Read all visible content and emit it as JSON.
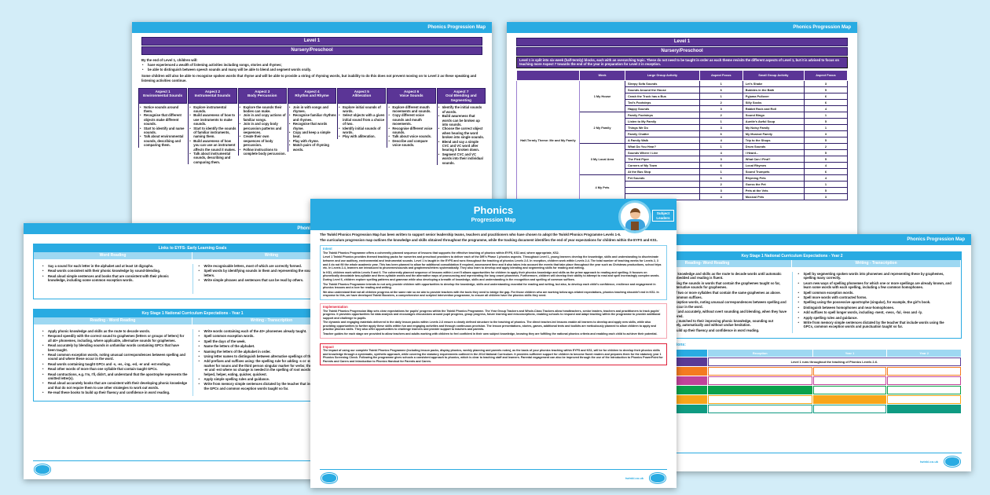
{
  "header_label": "Phonics Progression Map",
  "level1": {
    "title": "Level 1",
    "subtitle": "Nursery/Preschool",
    "intro": "By the end of Level 1, children will:",
    "intro_points": [
      "have experienced a wealth of listening activities including songs, stories and rhymes;",
      "be able to distinguish between speech sounds and many will be able to blend and segment words orally."
    ],
    "note": "Some children will also be able to recognise spoken words that rhyme and will be able to provide a string of rhyming words, but inability to do this does not prevent moving on to Level 2 as these speaking and listening activities continue.",
    "aspects": [
      {
        "title": "Aspect 1",
        "name": "Environmental Sounds",
        "points": [
          "Notice sounds around them.",
          "Recognise that different objects make different sounds.",
          "Start to identify and name sounds.",
          "Talk about environmental sounds, describing and comparing them."
        ]
      },
      {
        "title": "Aspect 2",
        "name": "Instrumental Sounds",
        "points": [
          "Explore instrumental sounds.",
          "Build awareness of how to use instruments to make sounds.",
          "Start to identify the sounds of familiar instruments, naming them.",
          "Build awareness of how you can use an instrument affects the sound it makes.",
          "Talk about instrumental sounds, describing and comparing them."
        ]
      },
      {
        "title": "Aspect 3",
        "name": "Body Percussion",
        "points": [
          "Explore the sounds their bodies can make.",
          "Join in and copy actions of familiar songs.",
          "Join in and copy body percussion patterns and sequences.",
          "Create their own sequences of body percussion.",
          "Follow instructions to complete body percussion."
        ]
      },
      {
        "title": "Aspect 4",
        "name": "Rhythm and Rhyme",
        "points": [
          "Join in with songs and rhymes.",
          "Recognise familiar rhythms and rhymes.",
          "Recognise that words rhyme.",
          "Copy and keep a simple beat.",
          "Play with rhyme.",
          "Match pairs of rhyming words."
        ]
      },
      {
        "title": "Aspect 5",
        "name": "Alliteration",
        "points": [
          "Explore initial sounds of words.",
          "Select objects with a given initial sound from a choice of two.",
          "Identify initial sounds of words.",
          "Play with alliteration."
        ]
      },
      {
        "title": "Aspect 6",
        "name": "Voice Sounds",
        "points": [
          "Explore different mouth movements and sounds.",
          "Copy different voice sounds and mouth movements.",
          "Recognise different voice sounds.",
          "Talk about voice sounds.",
          "Describe and compare voice sounds."
        ]
      },
      {
        "title": "Aspect 7",
        "name": "Oral Blending and Segmenting",
        "points": [
          "Identify the initial sounds of words.",
          "Build awareness that words can be broken up into sounds.",
          "Choose the correct object when hearing the word broken into single sounds.",
          "Blend and say a simple CVC and VC word after hearing it broken down.",
          "Segment CVC and VC words into their individual sounds."
        ]
      }
    ]
  },
  "level1_plan": {
    "title": "Level 1",
    "subtitle": "Nursery/Preschool",
    "note": "Level 1 is split into six-week (half-termly) blocks, each with an overarching topic. These do not need to be taught in order as each theme revisits the different aspects of Level 1, but it is advised to focus on teaching more Aspect 7 towards the end of the year in preparation for Level 2 in reception.",
    "columns": [
      "",
      "Week",
      "Large Group Activity",
      "Aspect Focus",
      "Small Group Activity",
      "Aspect Focus"
    ],
    "theme": "Half-Termly Theme: Me and My Family",
    "weeks": [
      {
        "label": "1 My House",
        "rows": [
          [
            "Sleepy Sofa Sounds",
            "1",
            "Let's Shake",
            "3"
          ],
          [
            "Sounds Around the House",
            "6",
            "Bubbles in the Bath",
            "5"
          ],
          [
            "Crash the Truck has a Bus",
            "1",
            "Pyjama Pullover",
            "6"
          ],
          [
            "Ted's Footsteps",
            "2",
            "Silly Socks",
            "6"
          ],
          [
            "Happy Sounds",
            "3",
            "Rabbit Rock and Roll",
            "4"
          ]
        ]
      },
      {
        "label": "2 My Family",
        "rows": [
          [
            "Family Footsteps",
            "2",
            "Sound Bingo",
            "1"
          ],
          [
            "Listen to My Family",
            "1",
            "Auntie's Awful Soup",
            "5"
          ],
          [
            "Things We Do",
            "3",
            "My Noisy Family",
            "1"
          ],
          [
            "Family Chatter",
            "6",
            "My Musical Family",
            "3"
          ],
          [
            "A Family Walk",
            "4",
            "Trip to the Shops",
            "5"
          ]
        ]
      },
      {
        "label": "3 My Local Area",
        "rows": [
          [
            "What Do You Hear?",
            "1",
            "Drum Sounds",
            "2"
          ],
          [
            "Sounds Where I Live",
            "4",
            "I Heard...",
            "5"
          ],
          [
            "The Pied Piper",
            "3",
            "What Can I Find?",
            "5"
          ],
          [
            "Corners of My Town",
            "6",
            "Local Rhymes",
            "4"
          ],
          [
            "At the Bus Stop",
            "1",
            "Sound Trumpets",
            "6"
          ]
        ]
      },
      {
        "label": "4 My Pets",
        "rows": [
          [
            "Pet Sounds",
            "6",
            "Rhyming Pets",
            "4"
          ],
          [
            "",
            "2",
            "Guess the Pet",
            "1"
          ],
          [
            "",
            "3",
            "Pets at the Vets",
            "5"
          ],
          [
            "",
            "4",
            "Musical Pets",
            "3"
          ]
        ]
      }
    ]
  },
  "eyfs": {
    "title": "Links to EYFS- Early Learning Goals",
    "reading_label": "Word Reading",
    "writing_label": "Writing",
    "reading": [
      "Say a sound for each letter in the alphabet and at least 10 digraphs.",
      "Read words consistent with their phonic knowledge by sound-blending.",
      "Read aloud simple sentences and books that are consistent with their phonic knowledge, including some common exception words."
    ],
    "writing": [
      "Write recognisable letters, most of which are correctly formed.",
      "Spell words by identifying sounds in them and representing the sounds with a letter or letters.",
      "Write simple phrases and sentences that can be read by others."
    ]
  },
  "year1": {
    "title": "Key Stage 1 National Curriculum Expectations - Year 1",
    "reading_label": "Reading - Word Reading",
    "writing_label": "Writing - Transcription",
    "reading": [
      "Apply phonic knowledge and skills as the route to decode words.",
      "Respond speedily with the correct sound to graphemes (letters or groups of letters) for all 40+ phonemes, including, where applicable, alternative sounds for graphemes.",
      "Read accurately by blending sounds in unfamiliar words containing GPCs that have been taught.",
      "Read common exception words, noting unusual correspondences between spelling and sound and where these occur in the word.",
      "Read words containing taught GPCs and -s, -es, -ing, -ed, -er and -est endings.",
      "Read other words of more than one syllable that contain taught GPCs.",
      "Read contractions, e.g. I'm, I'll, didn't, and understand that the apostrophe represents the omitted letter(s).",
      "Read aloud accurately books that are consistent with their developing phonic knowledge and that do not require them to use other strategies to work out words.",
      "Re-read these books to build up their fluency and confidence in word reading."
    ],
    "writing": [
      "Write words containing each of the 40+ phonemes already taught.",
      "Spell common exception words.",
      "Spell the days of the week.",
      "Name the letters of the alphabet.",
      "Naming the letters of the alphabet in order.",
      "Using letter names to distinguish between alternative spellings of the same sound.",
      "Add prefixes and suffixes using: the spelling rule for adding -s or -es as the plural marker for nouns and the third person singular marker for verbs; the prefix un-; -ing, -ed, -er and -est where no change is needed in the spelling of root words, e.g. helping, helped, helper, eating, quicker, quickest.",
      "Apply simple spelling rules and guidance.",
      "Write from memory simple sentences dictated by the teacher that include words using the GPCs and common exception words taught so far."
    ]
  },
  "year2": {
    "title": "Key Stage 1 National Curriculum Expectations - Year 2",
    "reading_label": "Reading- Word Reading",
    "writing_label": "Writing - Transcription",
    "reading": [
      "Continue to apply phonic knowledge and skills as the route to decode words until automatic decoding has become embedded and reading is fluent.",
      "Read accurately by blending the sounds in words that contain the graphemes taught so far, especially recognising alternative sounds for graphemes.",
      "Read accurately words of two or more syllables that contain the same graphemes as above.",
      "Read words containing common suffixes.",
      "Read further common exception words, noting unusual correspondences between spelling and sound and where these occur in the word.",
      "Read most words quickly and accurately, without overt sounding and blending, when they have been frequently encountered.",
      "Read aloud books closely matched to their improving phonic knowledge, sounding out unfamiliar words accurately, automatically and without undue hesitation.",
      "Re-read these books to build up their fluency and confidence in word reading."
    ],
    "writing": [
      "Spell by segmenting spoken words into phonemes and representing these by graphemes, spelling many correctly.",
      "Learn new ways of spelling phonemes for which one or more spellings are already known, and learn some words with each spelling, including a few common homophones.",
      "Spell common exception words.",
      "Spell more words with contracted forms.",
      "Spelling using the possessive apostrophe (singular), for example, the girl's book.",
      "Distinguish between homophones and near-homophones.",
      "Add suffixes to spell longer words, including -ment, -ness, -ful, -less and -ly.",
      "Apply spelling rules and guidance.",
      "Write from memory simple sentences dictated by the teacher that include words using the GPCs, common exception words and punctuation taught so far."
    ],
    "levels_caption": "Phonics Levels and Expectations:",
    "levels_columns": [
      "Phonics Level",
      "Reception",
      "Year 1",
      "Year 2"
    ],
    "level1_note": "Level 1 runs throughout the teaching of Phonics Levels 2-6.",
    "levels": [
      {
        "label": "1",
        "color": "#5b3a96",
        "fill": []
      },
      {
        "label": "2",
        "color": "#f47b20",
        "fill": []
      },
      {
        "label": "3",
        "color": "#c1449a",
        "fill": []
      },
      {
        "label": "4",
        "color": "#0aa14b",
        "fill": [
          "Reception"
        ]
      },
      {
        "label": "5",
        "color": "#f9a51a",
        "fill": [
          "Year 1"
        ]
      },
      {
        "label": "6",
        "color": "#0f9b82",
        "fill": [
          "Year 2"
        ]
      }
    ]
  },
  "cover": {
    "title": "Phonics",
    "subtitle": "Progression Map",
    "badge": "Subject Leaders",
    "intro1": "The Twinkl Phonics Progression Map has been written to support senior leadership teams, teachers and practitioners who have chosen to adopt the Twinkl Phonics Programme Levels 1-6.",
    "intro2": "The curriculum progression map outlines the knowledge and skills obtained throughout the programme, while the tracking document identifies the end of year expectations for children within the EYFS and KS1.",
    "intent_label": "Intent",
    "intent": [
      "The Twinkl Phonics Programme offers a coherently planned sequence of lessons that supports the effective teaching of phonics within EYFS, KS1 and, where appropriate, KS2.",
      "Level 1 Twinkl Phonics provides themed teaching packs for nurseries and preschool providers to deliver each of the DfE's Phase 1 phonics aspects. Throughout Level 1, young learners develop the knowledge, skills and understanding to discriminate between and use auditory, environmental and instrumental sounds. Level 1 is taught in the EYFS and runs throughout the teaching of phonics Levels 2-6. In reception, children work within Levels 2-4. The total number of teaching weeks for Levels 2, 3 and 4 do not fill the whole academic year. This has been planned to allow for additional consolidation if required, assessment time and it also takes into account the events that take place throughout the year such as Christmas productions, school trips etc. In Levels 2-4, learners are introduced to phonemes/sounds and graphemes/letters systematically. They also learn to develop and apply blending and segmenting skills for reading and writing.",
      "In KS1, children work within Levels 5 and 6. The coherently planned sequence of lessons within Level 5 allows opportunities for children to apply their phonics knowledge and skills as the prime approach to reading and spelling. It focuses on phonetically decodable two-syllable and three-syllable words and the alternative ways of pronouncing and representing the long vowel phonemes. Furthermore, children will develop their ability to attempt to read and spell increasingly complex words. During Level 6, children explore spelling patterns and grammar while also developing a breadth of knowledge, skills and understanding in the recognition and spelling of common suffixes.",
      "The Twinkl Phonics Programme intends to not only provide children with opportunities to develop the knowledge, skills and understanding essential for reading and writing, but also, to develop each child's confidence, resilience and engagement in phonics lessons and a love for reading and writing.",
      "We also understand that not all children progress at the same rate so we aim to provide teachers with the tools they need to bridge the gap. For those children who are working below age-related expectations, phonics teaching shouldn't end in KS1. In response to this, we have developed Twinkl Boosters, a comprehensive and scripted intervention programme, to ensure all children have the phonics skills they need."
    ],
    "implementation_label": "Implementation",
    "implementation": [
      "The Twinkl Phonics Progression Map sets clear expectations for pupils' progress within the Twinkl Phonics Programme. The Year Group Trackers and Whole-Class Trackers allow headteachers, senior leaders, teachers and practitioners to track pupils' progress. It provides opportunities for data analysis and encourages discussions around pupil progress, group progress, future learning and misconceptions, enabling schools to respond and adapt teaching within the programme to provide additional support and challenge to pupils.",
      "The dynamic and engaging materials delivered in the daily lesson packs within Levels 2-6 ensure a clearly defined structure to the teaching of phonics. The direct teacher-led lessons enable all learners to develop and apply new skills, while also providing opportunities to further apply these skills within fun and engaging activities and through continuous provision. The lesson presentations, stories, games, additional texts and toolkits are meticulously planned to allow children to apply and practise phonics skills. They also offer opportunities to challenge learners and provide support to teachers and parents.",
      "Teacher guides for each stage are provided to allow teachers and adults working with children to feel confident in their own subject knowledge, knowing they are fulfilling the national phonics criteria and enabling each child to achieve their potential."
    ],
    "impact_label": "Impact",
    "impact": "The impact of using our complete Twinkl Phonics Programme (including lesson packs, display phonics, weekly planning and parents notes), as the basis of your phonics teaching within EYFS and KS1, will be for children to develop their phonics skills and knowledge through a systematic, synthetic approach, while covering the statutory requirements outlined in the 2014 National Curriculum. It provides sufficient support for children to become fluent readers and prepares them for the statutory year 1 Phonics Screening Check. Following the programme gives schools a consistent approach to phonics, which is clear to teaching staff and learners. Parental engagement can also be improved through the use of the Introduction to Phonics PowerPoint for Parents and Carers and Introduction to Phonics Handout for Parents and Carers.",
    "footer_url": "twinkl.co.uk"
  },
  "colors": {
    "accent": "#29abe2",
    "purple": "#5b3596",
    "red": "#e0203a"
  }
}
